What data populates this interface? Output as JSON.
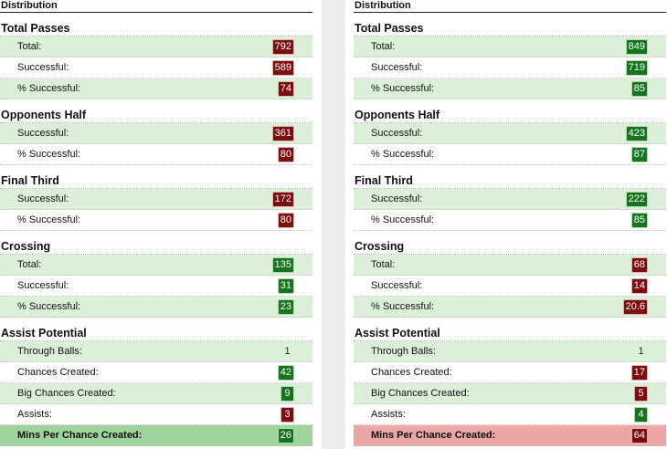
{
  "left": {
    "header": "Distribution",
    "sections": [
      {
        "title": "Total Passes",
        "rows": [
          {
            "label": "Total:",
            "value": "792",
            "color": "red"
          },
          {
            "label": "Successful:",
            "value": "589",
            "color": "red"
          },
          {
            "label": "% Successful:",
            "value": "74",
            "color": "red"
          }
        ]
      },
      {
        "title": "Opponents Half",
        "rows": [
          {
            "label": "Successful:",
            "value": "361",
            "color": "red"
          },
          {
            "label": "% Successful:",
            "value": "80",
            "color": "red"
          }
        ]
      },
      {
        "title": "Final Third",
        "rows": [
          {
            "label": "Successful:",
            "value": "172",
            "color": "red"
          },
          {
            "label": "% Successful:",
            "value": "80",
            "color": "red"
          }
        ]
      },
      {
        "title": "Crossing",
        "rows": [
          {
            "label": "Total:",
            "value": "135",
            "color": "green"
          },
          {
            "label": "Successful:",
            "value": "31",
            "color": "green"
          },
          {
            "label": "% Successful:",
            "value": "23",
            "color": "green"
          }
        ]
      },
      {
        "title": "Assist Potential",
        "rows": [
          {
            "label": "Through Balls:",
            "value": "1",
            "color": "plain"
          },
          {
            "label": "Chances Created:",
            "value": "42",
            "color": "green"
          },
          {
            "label": "Big Chances Created:",
            "value": "9",
            "color": "green"
          },
          {
            "label": "Assists:",
            "value": "3",
            "color": "red"
          },
          {
            "label": "Mins Per Chance Created:",
            "value": "26",
            "color": "green"
          }
        ]
      }
    ]
  },
  "right": {
    "header": "Distribution",
    "sections": [
      {
        "title": "Total Passes",
        "rows": [
          {
            "label": "Total:",
            "value": "849",
            "color": "green"
          },
          {
            "label": "Successful:",
            "value": "719",
            "color": "green"
          },
          {
            "label": "% Successful:",
            "value": "85",
            "color": "green"
          }
        ]
      },
      {
        "title": "Opponents Half",
        "rows": [
          {
            "label": "Successful:",
            "value": "423",
            "color": "green"
          },
          {
            "label": "% Successful:",
            "value": "87",
            "color": "green"
          }
        ]
      },
      {
        "title": "Final Third",
        "rows": [
          {
            "label": "Successful:",
            "value": "222",
            "color": "green"
          },
          {
            "label": "% Successful:",
            "value": "85",
            "color": "green"
          }
        ]
      },
      {
        "title": "Crossing",
        "rows": [
          {
            "label": "Total:",
            "value": "68",
            "color": "red"
          },
          {
            "label": "Successful:",
            "value": "14",
            "color": "red"
          },
          {
            "label": "% Successful:",
            "value": "20.6",
            "color": "red"
          }
        ]
      },
      {
        "title": "Assist Potential",
        "rows": [
          {
            "label": "Through Balls:",
            "value": "1",
            "color": "plain"
          },
          {
            "label": "Chances Created:",
            "value": "17",
            "color": "red"
          },
          {
            "label": "Big Chances Created:",
            "value": "5",
            "color": "red"
          },
          {
            "label": "Assists:",
            "value": "4",
            "color": "green"
          },
          {
            "label": "Mins Per Chance Created:",
            "value": "64",
            "color": "red"
          }
        ]
      }
    ]
  },
  "colors": {
    "good": "#15751d",
    "bad": "#7d0c0c",
    "row_shade": "#dcefd9",
    "final_good": "#9ed39e",
    "final_bad": "#eba6a6"
  }
}
